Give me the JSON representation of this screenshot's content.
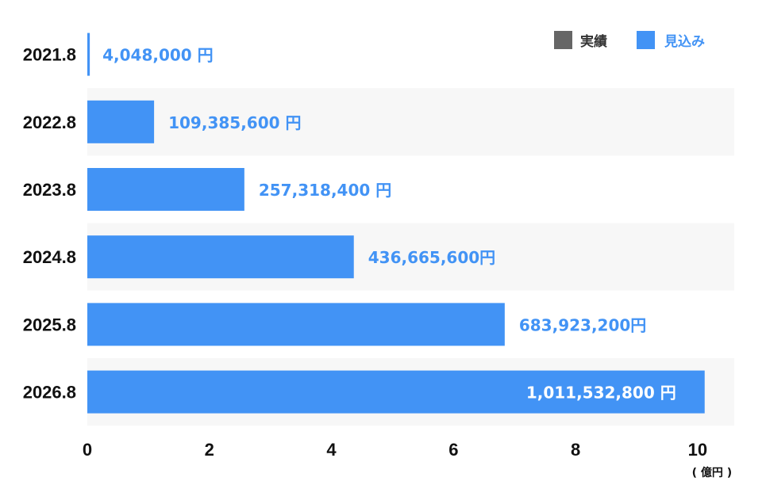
{
  "chart_data": {
    "type": "bar",
    "orientation": "horizontal",
    "categories": [
      "2021.8",
      "2022.8",
      "2023.8",
      "2024.8",
      "2025.8",
      "2026.8"
    ],
    "series": [
      {
        "name": "見込み",
        "values": [
          4048000,
          109385600,
          257318400,
          436665600,
          683923200,
          1011532800
        ],
        "labels": [
          "4,048,000 円",
          "109,385,600 円",
          "257,318,400 円",
          "436,665,600円",
          "683,923,200円",
          "1,011,532,800 円"
        ]
      }
    ],
    "legend": {
      "position": "top-right",
      "entries": [
        {
          "name": "実績",
          "color": "#666666"
        },
        {
          "name": "見込み",
          "color": "#4293f5"
        }
      ]
    },
    "x_axis": {
      "ticks": [
        "0",
        "2",
        "4",
        "6",
        "8",
        "10"
      ],
      "tick_values": [
        0,
        2,
        4,
        6,
        8,
        10
      ],
      "unit": "( 億円 )",
      "range": [
        0,
        10.6
      ],
      "unit_scale": 100000000
    },
    "colors": {
      "forecast": "#4293f5",
      "actual": "#666666",
      "label_outside": "#4293f5",
      "label_inside": "#ffffff",
      "band_alt": "#f7f7f7"
    },
    "grid": false
  }
}
